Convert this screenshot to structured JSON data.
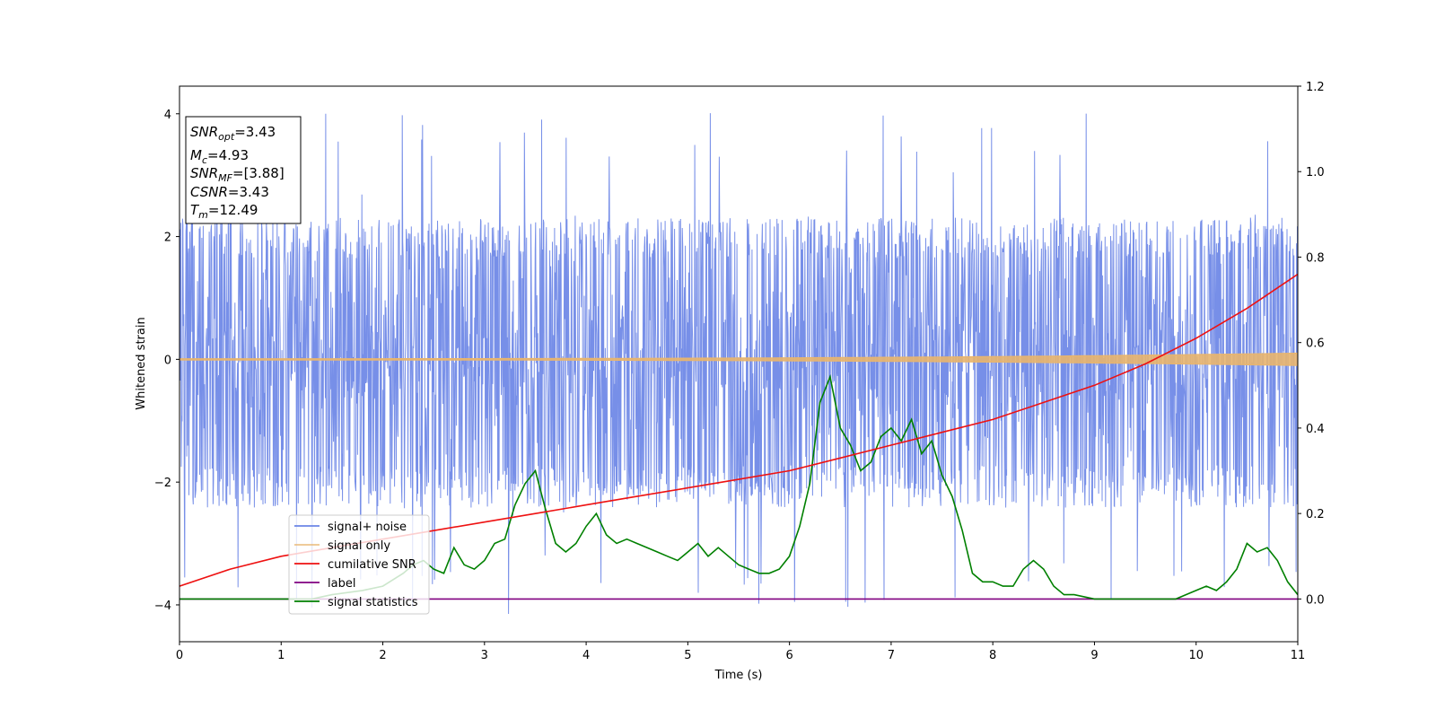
{
  "chart_data": {
    "type": "line",
    "xlabel": "Time (s)",
    "ylabel": "Whitened strain",
    "xlim": [
      0,
      11
    ],
    "ylim": [
      -4.6,
      4.45
    ],
    "y2lim": [
      -0.1,
      1.2
    ],
    "x_ticks": [
      0,
      1,
      2,
      3,
      4,
      5,
      6,
      7,
      8,
      9,
      10,
      11
    ],
    "y_ticks": [
      -4,
      -2,
      0,
      2,
      4
    ],
    "y2_ticks": [
      "0.0",
      "0.2",
      "0.4",
      "0.6",
      "0.8",
      "1.0",
      "1.2"
    ],
    "y2_tick_values": [
      0.0,
      0.2,
      0.4,
      0.6,
      0.8,
      1.0,
      1.2
    ],
    "grid": false,
    "legend_position": "lower-left",
    "annotation": {
      "lines": [
        {
          "base": "SNR",
          "sub": "opt",
          "value": "=3.43"
        },
        {
          "base": "M",
          "sub": "c",
          "value": "=4.93"
        },
        {
          "base": "SNR",
          "sub": "MF",
          "value": "=[3.88]"
        },
        {
          "base": "CSNR",
          "sub": "",
          "value": "=3.43"
        },
        {
          "base": "T",
          "sub": "m",
          "value": "=12.49"
        }
      ]
    },
    "series": [
      {
        "name": "signal+ noise",
        "color": "#6b86e6",
        "axis": "left",
        "style": "noise",
        "noise_envelope": {
          "typical_min": -2.3,
          "typical_max": 2.2,
          "extreme_min": -4.15,
          "extreme_max": 4.05
        }
      },
      {
        "name": "signal only",
        "color": "#e8b56e",
        "axis": "left",
        "style": "chirp",
        "amplitude": {
          "start": 0.01,
          "end": 0.1
        }
      },
      {
        "name": "cumilative SNR",
        "color": "#ee1111",
        "axis": "right",
        "x": [
          0,
          0.5,
          1,
          1.5,
          2,
          2.5,
          3,
          3.5,
          4,
          4.5,
          5,
          5.5,
          6,
          6.5,
          7,
          7.5,
          8,
          8.5,
          9,
          9.5,
          10,
          10.5,
          11
        ],
        "values": [
          0.03,
          0.07,
          0.1,
          0.12,
          0.14,
          0.16,
          0.18,
          0.2,
          0.22,
          0.24,
          0.26,
          0.28,
          0.3,
          0.33,
          0.36,
          0.39,
          0.42,
          0.46,
          0.5,
          0.55,
          0.61,
          0.68,
          0.76
        ]
      },
      {
        "name": "label",
        "color": "#800080",
        "axis": "right",
        "x": [
          0,
          11
        ],
        "values": [
          0.0,
          0.0
        ]
      },
      {
        "name": "signal statistics",
        "color": "#008000",
        "axis": "right",
        "x": [
          0,
          0.5,
          1.0,
          1.3,
          1.5,
          1.8,
          2.0,
          2.2,
          2.3,
          2.4,
          2.5,
          2.6,
          2.7,
          2.8,
          2.9,
          3.0,
          3.1,
          3.2,
          3.3,
          3.4,
          3.5,
          3.6,
          3.7,
          3.8,
          3.9,
          4.0,
          4.1,
          4.2,
          4.3,
          4.4,
          4.5,
          4.6,
          4.7,
          4.8,
          4.9,
          5.0,
          5.1,
          5.2,
          5.3,
          5.4,
          5.5,
          5.6,
          5.7,
          5.8,
          5.9,
          6.0,
          6.1,
          6.2,
          6.3,
          6.4,
          6.5,
          6.6,
          6.7,
          6.8,
          6.9,
          7.0,
          7.1,
          7.2,
          7.3,
          7.4,
          7.5,
          7.6,
          7.7,
          7.8,
          7.9,
          8.0,
          8.1,
          8.2,
          8.3,
          8.4,
          8.5,
          8.6,
          8.7,
          8.8,
          9.0,
          9.3,
          9.6,
          9.8,
          9.9,
          10.0,
          10.1,
          10.2,
          10.3,
          10.4,
          10.5,
          10.6,
          10.7,
          10.8,
          10.9,
          11.0
        ],
        "values": [
          0.0,
          0.0,
          0.0,
          0.0,
          0.01,
          0.02,
          0.03,
          0.06,
          0.08,
          0.09,
          0.07,
          0.06,
          0.12,
          0.08,
          0.07,
          0.09,
          0.13,
          0.14,
          0.22,
          0.27,
          0.3,
          0.21,
          0.13,
          0.11,
          0.13,
          0.17,
          0.2,
          0.15,
          0.13,
          0.14,
          0.13,
          0.12,
          0.11,
          0.1,
          0.09,
          0.11,
          0.13,
          0.1,
          0.12,
          0.1,
          0.08,
          0.07,
          0.06,
          0.06,
          0.07,
          0.1,
          0.17,
          0.27,
          0.46,
          0.52,
          0.4,
          0.36,
          0.3,
          0.32,
          0.38,
          0.4,
          0.37,
          0.42,
          0.34,
          0.37,
          0.29,
          0.24,
          0.16,
          0.06,
          0.04,
          0.04,
          0.03,
          0.03,
          0.07,
          0.09,
          0.07,
          0.03,
          0.01,
          0.01,
          0.0,
          0.0,
          0.0,
          0.0,
          0.01,
          0.02,
          0.03,
          0.02,
          0.04,
          0.07,
          0.13,
          0.11,
          0.12,
          0.09,
          0.04,
          0.01
        ]
      }
    ]
  }
}
